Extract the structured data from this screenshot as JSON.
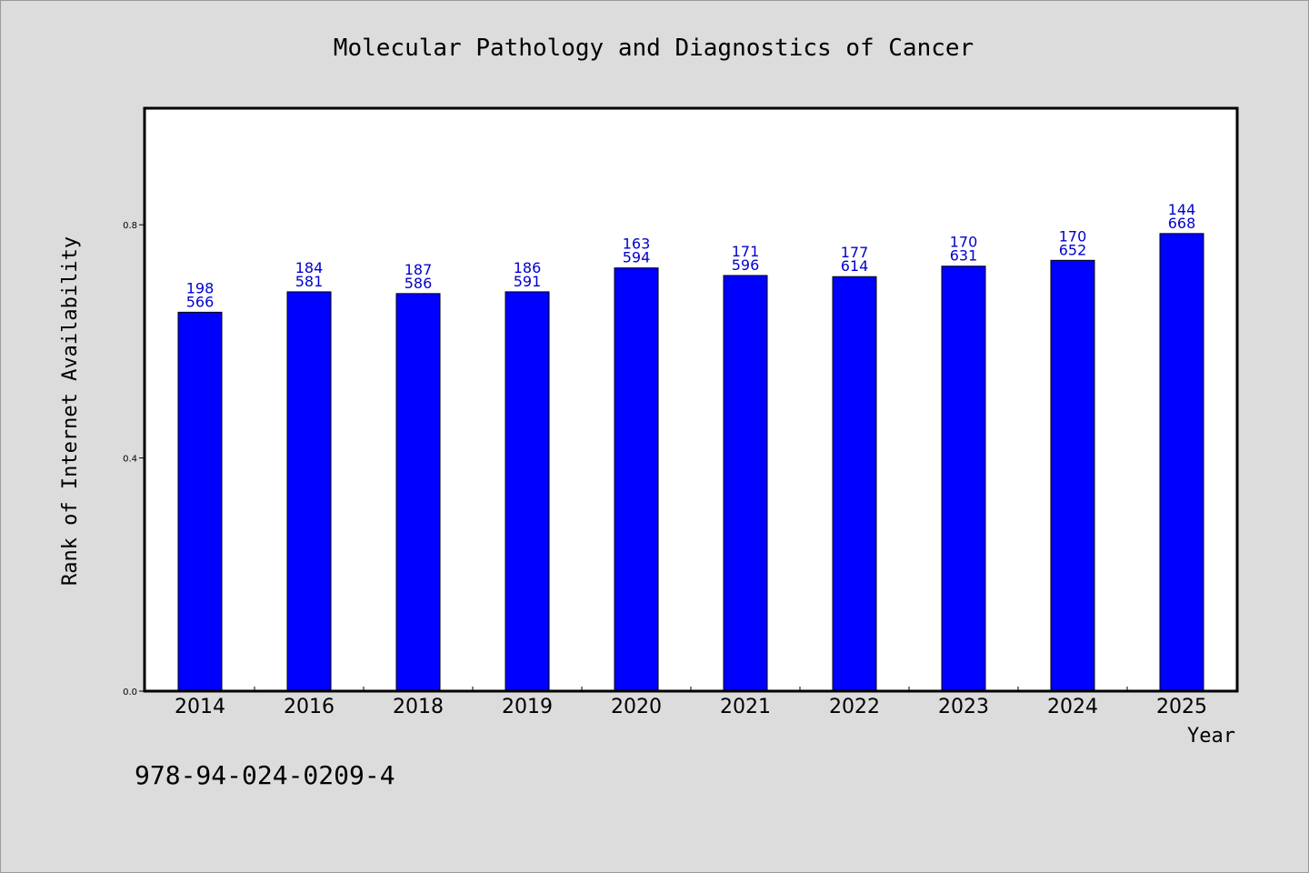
{
  "chart_data": {
    "type": "bar",
    "title": "Molecular Pathology and Diagnostics of Cancer",
    "xlabel": "Year",
    "ylabel": "Rank of Internet Availability",
    "categories": [
      "2014",
      "2016",
      "2018",
      "2019",
      "2020",
      "2021",
      "2022",
      "2023",
      "2024",
      "2025"
    ],
    "values": [
      0.65,
      0.685,
      0.682,
      0.685,
      0.726,
      0.713,
      0.711,
      0.729,
      0.739,
      0.785
    ],
    "bar_labels_top": [
      "198",
      "184",
      "187",
      "186",
      "163",
      "171",
      "177",
      "170",
      "170",
      "144"
    ],
    "bar_labels_bottom": [
      "566",
      "581",
      "586",
      "591",
      "594",
      "596",
      "614",
      "631",
      "652",
      "668"
    ],
    "yticks": [
      0.0,
      0.4,
      0.8
    ],
    "ytick_labels": [
      "0.0",
      "0.4",
      "0.8"
    ],
    "ylim": [
      0,
      1.0
    ],
    "grid": false,
    "colors": {
      "bar": "#0000ff",
      "bar_edge": "#000000",
      "label": "#0000cc",
      "background": "#dcdcdc",
      "plot_bg": "#ffffff"
    }
  },
  "footer": {
    "isbn": "978-94-024-0209-4"
  }
}
